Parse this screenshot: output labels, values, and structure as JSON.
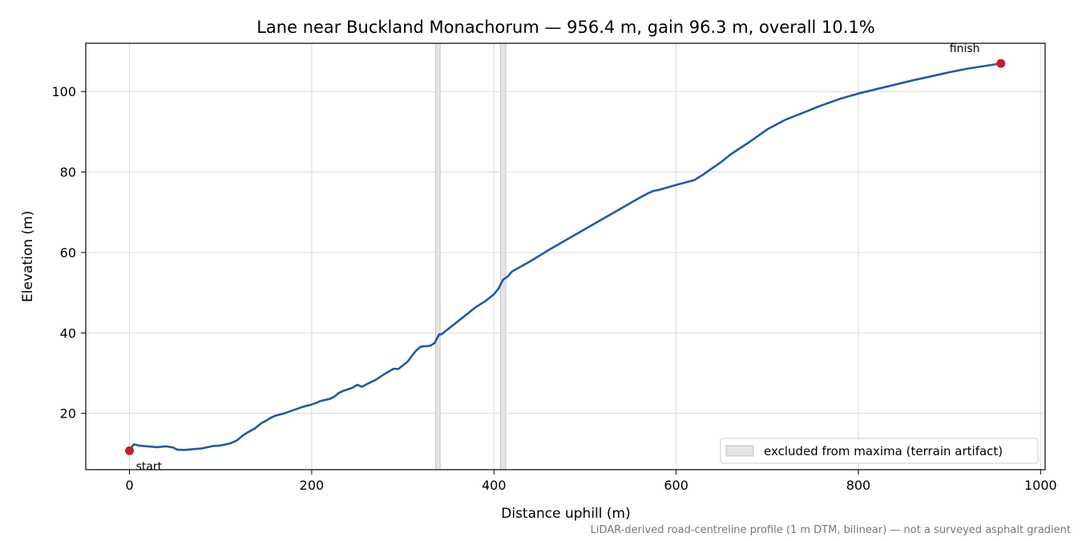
{
  "chart_data": {
    "type": "line",
    "title": "Lane near Buckland Monachorum — 956.4 m, gain 96.3 m, overall 10.1%",
    "xlabel": "Distance uphill (m)",
    "ylabel": "Elevation (m)",
    "xlim": [
      -48,
      1005
    ],
    "ylim": [
      6,
      112
    ],
    "xticks": [
      0,
      200,
      400,
      600,
      800,
      1000
    ],
    "yticks": [
      20,
      40,
      60,
      80,
      100
    ],
    "grid": true,
    "series": [
      {
        "color": "#1f5aa8",
        "x": [
          0,
          3,
          5,
          10,
          20,
          30,
          40,
          48,
          52,
          60,
          70,
          80,
          88,
          92,
          100,
          110,
          118,
          125,
          130,
          138,
          145,
          150,
          155,
          160,
          170,
          180,
          190,
          200,
          205,
          210,
          220,
          225,
          230,
          235,
          245,
          250,
          255,
          260,
          270,
          280,
          290,
          295,
          300,
          305,
          310,
          315,
          320,
          330,
          335,
          340,
          342,
          350,
          360,
          370,
          380,
          390,
          400,
          405,
          410,
          415,
          420,
          440,
          460,
          480,
          500,
          520,
          540,
          560,
          570,
          575,
          580,
          600,
          620,
          630,
          640,
          650,
          660,
          680,
          700,
          720,
          740,
          760,
          780,
          800,
          820,
          840,
          860,
          880,
          900,
          920,
          940,
          956.4
        ],
        "y": [
          10.7,
          11.8,
          12.3,
          12.0,
          11.8,
          11.6,
          11.8,
          11.5,
          11.0,
          10.9,
          11.1,
          11.3,
          11.7,
          11.9,
          12.0,
          12.5,
          13.3,
          14.6,
          15.3,
          16.3,
          17.6,
          18.2,
          18.9,
          19.4,
          20.0,
          20.8,
          21.6,
          22.2,
          22.6,
          23.1,
          23.6,
          24.2,
          25.1,
          25.6,
          26.4,
          27.1,
          26.6,
          27.2,
          28.3,
          29.8,
          31.1,
          31.0,
          31.9,
          32.8,
          34.3,
          35.7,
          36.6,
          36.8,
          37.5,
          39.7,
          39.6,
          41.0,
          42.8,
          44.6,
          46.4,
          47.8,
          49.6,
          51.0,
          53.2,
          54.0,
          55.3,
          57.8,
          60.6,
          63.2,
          65.8,
          68.4,
          71.0,
          73.6,
          74.8,
          75.3,
          75.5,
          76.8,
          78.0,
          79.4,
          81.0,
          82.6,
          84.4,
          87.4,
          90.6,
          93.0,
          94.8,
          96.6,
          98.2,
          99.5,
          100.6,
          101.7,
          102.8,
          103.8,
          104.8,
          105.7,
          106.4,
          107.0
        ]
      }
    ],
    "excluded_bands": [
      [
        336,
        341
      ],
      [
        407,
        413
      ]
    ],
    "markers": [
      {
        "x": 0,
        "y": 10.7,
        "label": "start",
        "color": "#c0202a"
      },
      {
        "x": 956.4,
        "y": 107.0,
        "label": "finish",
        "color": "#c0202a"
      }
    ],
    "legend": {
      "position": "lower-right",
      "label": "excluded from maxima (terrain artifact)",
      "color": "#e4e4e4"
    },
    "footnote": "LiDAR-derived road-centreline profile (1 m DTM, bilinear) — not a surveyed asphalt gradient"
  }
}
